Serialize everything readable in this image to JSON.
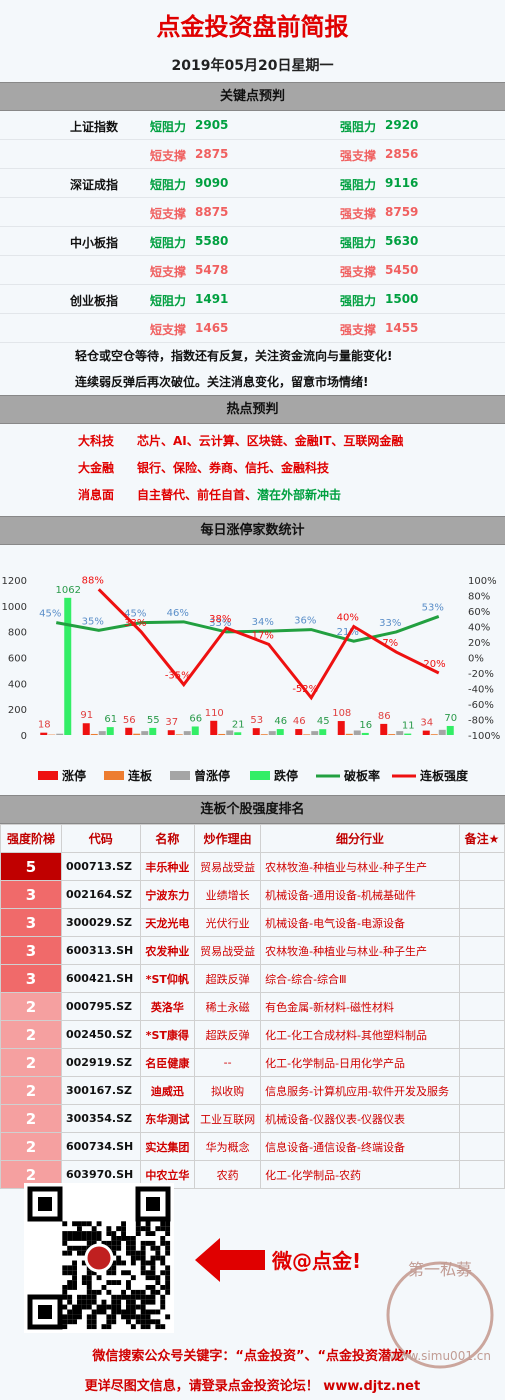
{
  "header": {
    "title": "点金投资盘前简报",
    "date": "2019年05月20日星期一"
  },
  "keypoints": {
    "title": "关键点预判",
    "labels": {
      "short_res": "短阻力",
      "strong_res": "强阻力",
      "short_sup": "短支撑",
      "strong_sup": "强支撑"
    },
    "rows": [
      {
        "name": "上证指数",
        "short_res": 2905,
        "strong_res": 2920,
        "short_sup": 2875,
        "strong_sup": 2856
      },
      {
        "name": "深证成指",
        "short_res": 9090,
        "strong_res": 9116,
        "short_sup": 8875,
        "strong_sup": 8759
      },
      {
        "name": "中小板指",
        "short_res": 5580,
        "strong_res": 5630,
        "short_sup": 5478,
        "strong_sup": 5450
      },
      {
        "name": "创业板指",
        "short_res": 1491,
        "strong_res": 1500,
        "short_sup": 1465,
        "strong_sup": 1455
      }
    ],
    "notes": [
      "轻仓或空仓等待，指数还有反复，关注资金流向与量能变化!",
      "连续弱反弹后再次破位。关注消息变化，留意市场情绪!"
    ]
  },
  "hot": {
    "title": "热点预判",
    "rows": [
      {
        "label": "大科技",
        "text": "芯片、AI、云计算、区块链、金融IT、互联网金融"
      },
      {
        "label": "大金融",
        "text": "银行、保险、券商、信托、金融科技"
      },
      {
        "label": "消息面",
        "text": "自主替代、前任自首、",
        "extra": "潜在外部新冲击"
      }
    ]
  },
  "chart_data": {
    "type": "combo",
    "title": "每日涨停家数统计",
    "categories": [
      null,
      null,
      null,
      null,
      null,
      null,
      null,
      null,
      null,
      null
    ],
    "ylim": [
      0,
      1200
    ],
    "yticks": [
      0,
      200,
      400,
      600,
      800,
      1000,
      1200
    ],
    "y2lim": [
      -100,
      100
    ],
    "y2ticks": [
      {
        "value": -100,
        "label": "-100%"
      },
      {
        "value": -80,
        "label": "-80%"
      },
      {
        "value": -60,
        "label": "-60%"
      },
      {
        "value": -40,
        "label": "-40%"
      },
      {
        "value": -20,
        "label": "-20%"
      },
      {
        "value": 0,
        "label": "0%"
      },
      {
        "value": 20,
        "label": "20%"
      },
      {
        "value": 40,
        "label": "40%"
      },
      {
        "value": 60,
        "label": "60%"
      },
      {
        "value": 80,
        "label": "80%"
      },
      {
        "value": 100,
        "label": "100%"
      }
    ],
    "series": [
      {
        "name": "涨停",
        "type": "bar",
        "color": "#ee1111",
        "labels": true,
        "label_color": "#e04040",
        "values": [
          18,
          91,
          56,
          37,
          110,
          53,
          46,
          108,
          86,
          34
        ]
      },
      {
        "name": "连板",
        "type": "bar",
        "color": "#ed7d31",
        "values": [
          3,
          8,
          10,
          5,
          8,
          6,
          5,
          9,
          7,
          6
        ]
      },
      {
        "name": "曾涨停",
        "type": "bar",
        "color": "#a5a5a5",
        "values": [
          10,
          30,
          30,
          30,
          35,
          30,
          30,
          35,
          30,
          40
        ]
      },
      {
        "name": "跌停",
        "type": "bar",
        "color": "#33ee66",
        "labels": true,
        "label_color": "#2a9a4a",
        "values": [
          1062,
          61,
          55,
          66,
          21,
          46,
          45,
          16,
          11,
          70
        ]
      },
      {
        "name": "破板率",
        "type": "line",
        "axis": "y2",
        "color": "#22a040",
        "label_color": "#5b8fc9",
        "values": [
          45,
          35,
          45,
          46,
          33,
          34,
          36,
          21,
          33,
          53
        ],
        "value_labels": [
          "45%",
          "35%",
          "45%",
          "46%",
          "33%",
          "34%",
          "36%",
          "21%",
          "33%",
          "53%"
        ]
      },
      {
        "name": "连板强度",
        "type": "line",
        "axis": "y2",
        "color": "#ee1111",
        "label_color": "#ee1111",
        "values": [
          null,
          88,
          33,
          -35,
          38,
          17,
          -52,
          40,
          7,
          -20
        ],
        "value_labels": [
          null,
          "88%",
          "33%",
          "-35%",
          "38%",
          "17%",
          "-52%",
          "40%",
          "7%",
          "-20%"
        ]
      }
    ]
  },
  "ranking": {
    "title": "连板个股强度排名",
    "headers": [
      "强度阶梯",
      "代码",
      "名称",
      "炒作理由",
      "细分行业",
      "备注★"
    ],
    "level_colors": {
      "5": "#c00000",
      "3": "#f06a6a",
      "2": "#f5a0a0"
    },
    "rows": [
      [
        5,
        "000713.SZ",
        "丰乐种业",
        "贸易战受益",
        "农林牧渔-种植业与林业-种子生产"
      ],
      [
        3,
        "002164.SZ",
        "宁波东力",
        "业绩增长",
        "机械设备-通用设备-机械基础件"
      ],
      [
        3,
        "300029.SZ",
        "天龙光电",
        "光伏行业",
        "机械设备-电气设备-电源设备"
      ],
      [
        3,
        "600313.SH",
        "农发种业",
        "贸易战受益",
        "农林牧渔-种植业与林业-种子生产"
      ],
      [
        3,
        "600421.SH",
        "*ST仰帆",
        "超跌反弹",
        "综合-综合-综合Ⅲ"
      ],
      [
        2,
        "000795.SZ",
        "英洛华",
        "稀土永磁",
        "有色金属-新材料-磁性材料"
      ],
      [
        2,
        "002450.SZ",
        "*ST康得",
        "超跌反弹",
        "化工-化工合成材料-其他塑料制品"
      ],
      [
        2,
        "002919.SZ",
        "名臣健康",
        "--",
        "化工-化学制品-日用化学产品"
      ],
      [
        2,
        "300167.SZ",
        "迪威迅",
        "拟收购",
        "信息服务-计算机应用-软件开发及服务"
      ],
      [
        2,
        "300354.SZ",
        "东华测试",
        "工业互联网",
        "机械设备-仪器仪表-仪器仪表"
      ],
      [
        2,
        "600734.SH",
        "实达集团",
        "华为概念",
        "信息设备-通信设备-终端设备"
      ],
      [
        2,
        "603970.SH",
        "中农立华",
        "农药",
        "化工-化学制品-农药"
      ]
    ]
  },
  "footer": {
    "slogan": "微@点金!",
    "line1": "微信搜索公众号关键字：“点金投资”、“点金投资潜龙”",
    "line2": "更详尽图文信息，请登录点金投资论坛！ www.djtz.net",
    "watermark": "第一私募",
    "watermark_url": "www.simu001.cn"
  }
}
